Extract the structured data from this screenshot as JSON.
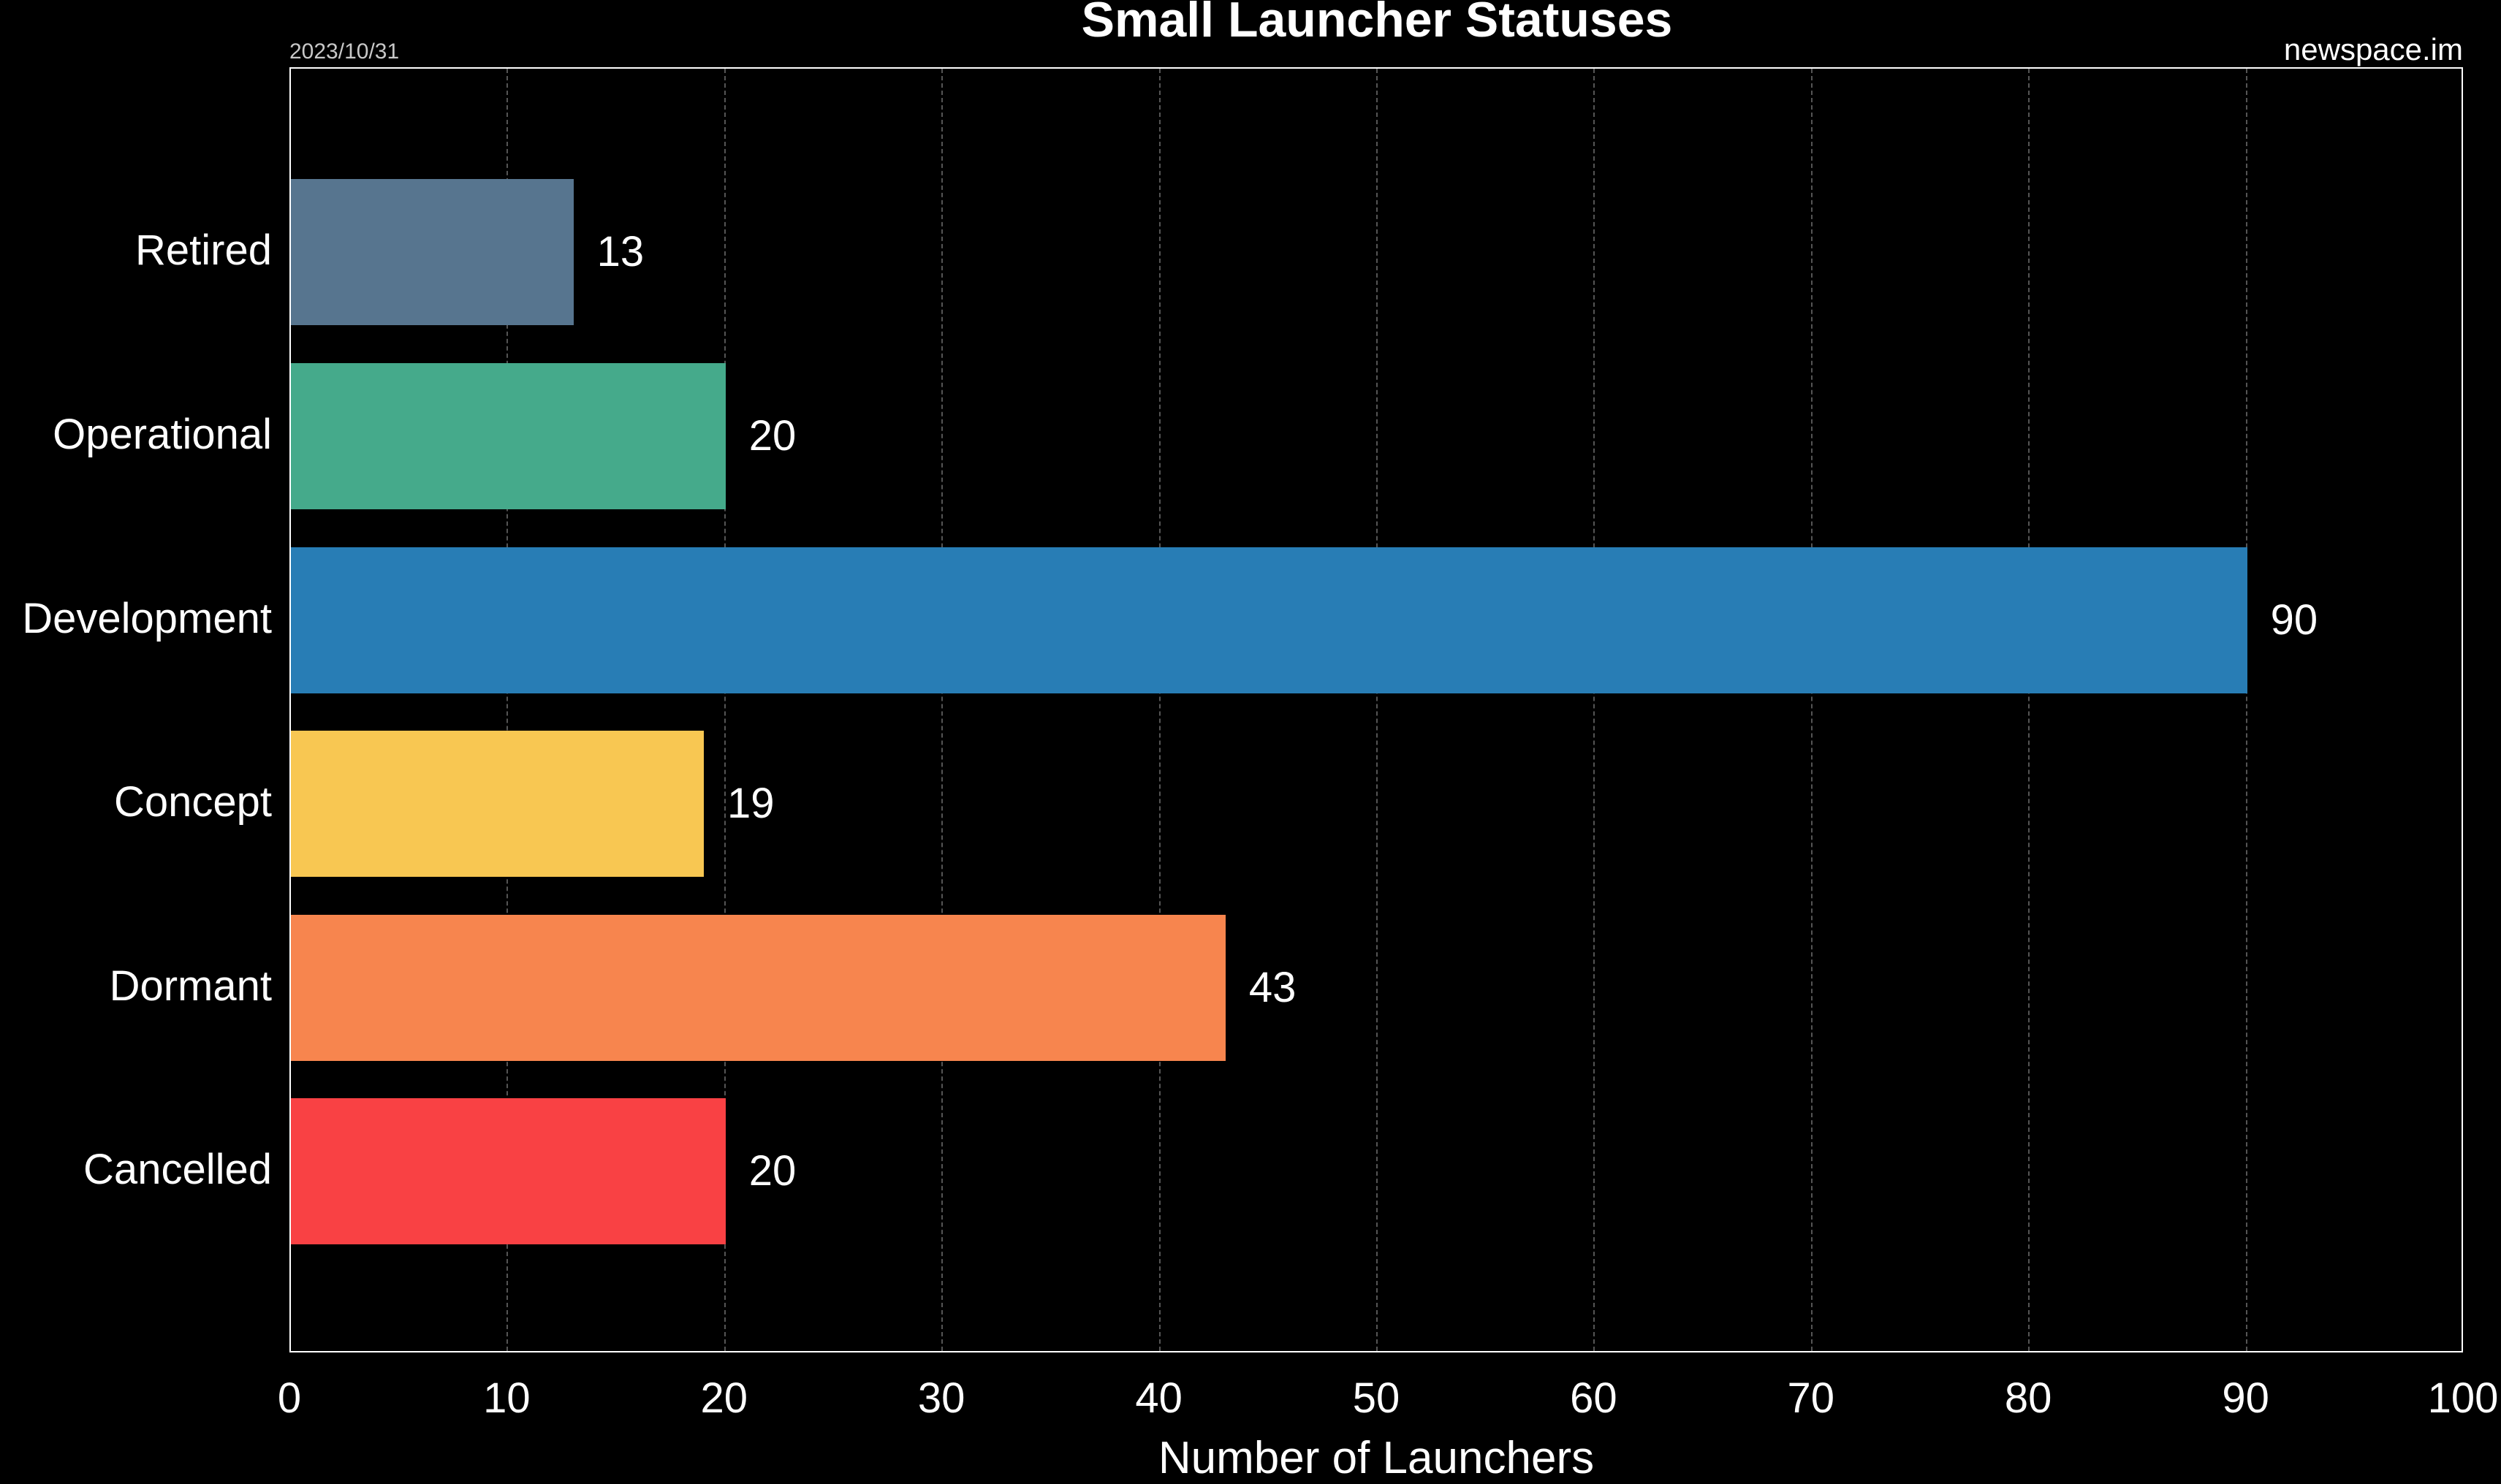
{
  "header": {
    "title": "Small Launcher Statuses",
    "date": "2023/10/31",
    "source": "newspace.im"
  },
  "axes": {
    "xlabel": "Number of Launchers",
    "ticks": [
      "0",
      "10",
      "20",
      "30",
      "40",
      "50",
      "60",
      "70",
      "80",
      "90",
      "100"
    ]
  },
  "bars": [
    {
      "label": "Retired",
      "value": "13",
      "color": "#57758f"
    },
    {
      "label": "Operational",
      "value": "20",
      "color": "#45aa8b"
    },
    {
      "label": "Development",
      "value": "90",
      "color": "#287db5"
    },
    {
      "label": "Concept",
      "value": "19",
      "color": "#f8c752"
    },
    {
      "label": "Dormant",
      "value": "43",
      "color": "#f7854e"
    },
    {
      "label": "Cancelled",
      "value": "20",
      "color": "#f94144"
    }
  ],
  "chart_data": {
    "type": "bar",
    "orientation": "horizontal",
    "title": "Small Launcher Statuses",
    "subtitle_left": "2023/10/31",
    "subtitle_right": "newspace.im",
    "categories": [
      "Retired",
      "Operational",
      "Development",
      "Concept",
      "Dormant",
      "Cancelled"
    ],
    "values": [
      13,
      20,
      90,
      19,
      43,
      20
    ],
    "colors": [
      "#57758f",
      "#45aa8b",
      "#287db5",
      "#f8c752",
      "#f7854e",
      "#f94144"
    ],
    "xlabel": "Number of Launchers",
    "ylabel": "",
    "xlim": [
      0,
      100
    ],
    "xticks": [
      0,
      10,
      20,
      30,
      40,
      50,
      60,
      70,
      80,
      90,
      100
    ],
    "grid": "vertical dashed",
    "data_labels": true,
    "legend": "none",
    "background": "#000000"
  }
}
